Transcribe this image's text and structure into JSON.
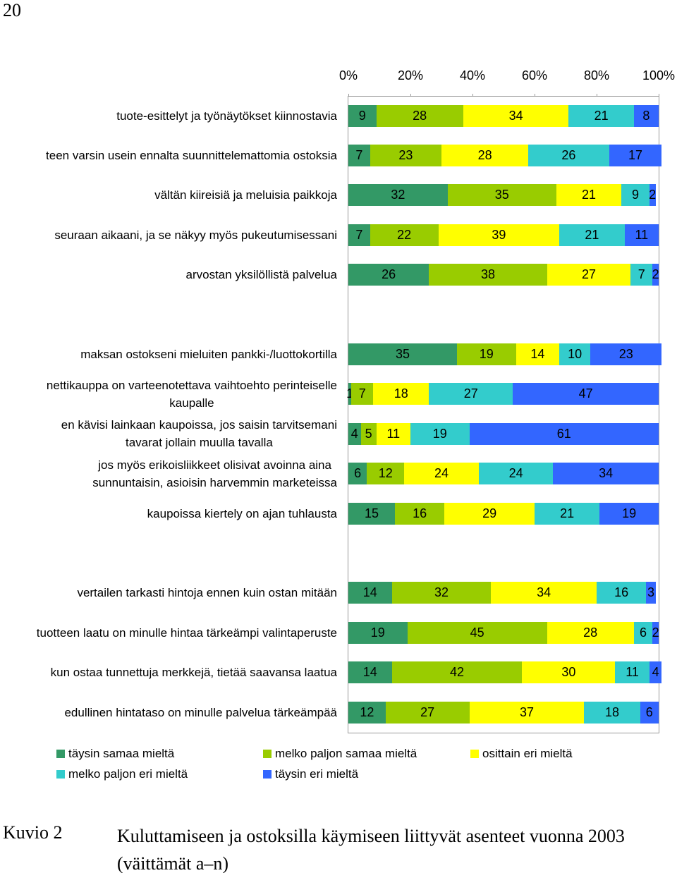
{
  "page_number": "20",
  "chart_data": {
    "type": "stacked-bar-horizontal",
    "categories": [
      "tuote-esittelyt ja työnäytökset kiinnostavia",
      "teen varsin usein ennalta suunnittelemattomia ostoksia",
      "vältän kiireisiä ja meluisia paikkoja",
      "seuraan aikaani, ja se näkyy myös pukeutumisessani",
      "arvostan yksilöllistä palvelua",
      null,
      "maksan ostokseni mieluiten pankki-/luottokortilla",
      "nettikauppa on varteenotettava vaihtoehto perinteiselle\nkaupalle",
      "en kävisi lainkaan kaupoissa, jos saisin tarvitsemani\ntavarat jollain muulla tavalla",
      "jos myös erikoisliikkeet olisivat avoinna aina\nsunnuntaisin, asioisin harvemmin marketeissa",
      "kaupoissa kiertely on ajan tuhlausta",
      null,
      "vertailen tarkasti hintoja ennen kuin ostan mitään",
      "tuotteen laatu on minulle hintaa tärkeämpi valintaperuste",
      "kun ostaa tunnettuja merkkejä, tietää saavansa laatua",
      "edullinen hintataso on minulle palvelua tärkeämpää"
    ],
    "series": [
      {
        "name": "täysin samaa mieltä",
        "color": "#339966",
        "values": [
          9,
          7,
          32,
          7,
          26,
          null,
          35,
          1,
          4,
          6,
          15,
          null,
          14,
          19,
          14,
          12
        ]
      },
      {
        "name": "melko paljon samaa mieltä",
        "color": "#99cc00",
        "values": [
          28,
          23,
          35,
          22,
          38,
          null,
          19,
          7,
          5,
          12,
          16,
          null,
          32,
          45,
          42,
          27
        ]
      },
      {
        "name": "osittain eri mieltä",
        "color": "#ffff00",
        "values": [
          34,
          28,
          21,
          39,
          27,
          null,
          14,
          18,
          11,
          24,
          29,
          null,
          34,
          28,
          30,
          37
        ]
      },
      {
        "name": "melko paljon eri mieltä",
        "color": "#33cccc",
        "values": [
          21,
          26,
          9,
          21,
          7,
          null,
          10,
          27,
          19,
          24,
          21,
          null,
          16,
          6,
          11,
          18
        ]
      },
      {
        "name": "täysin eri mieltä",
        "color": "#3366ff",
        "values": [
          8,
          17,
          2,
          11,
          2,
          null,
          23,
          47,
          61,
          34,
          19,
          null,
          3,
          2,
          4,
          6
        ]
      }
    ],
    "xlim": [
      0,
      100
    ],
    "xticks": [
      {
        "value": 0,
        "label": "0%"
      },
      {
        "value": 20,
        "label": "20%"
      },
      {
        "value": 40,
        "label": "40%"
      },
      {
        "value": 60,
        "label": "60%"
      },
      {
        "value": 80,
        "label": "80%"
      },
      {
        "value": 100,
        "label": "100%"
      }
    ],
    "grid": false
  },
  "caption": {
    "label": "Kuvio 2",
    "text": "Kuluttamiseen ja ostoksilla käymiseen liittyvät asenteet vuonna 2003\n(väittämät a–n)"
  }
}
